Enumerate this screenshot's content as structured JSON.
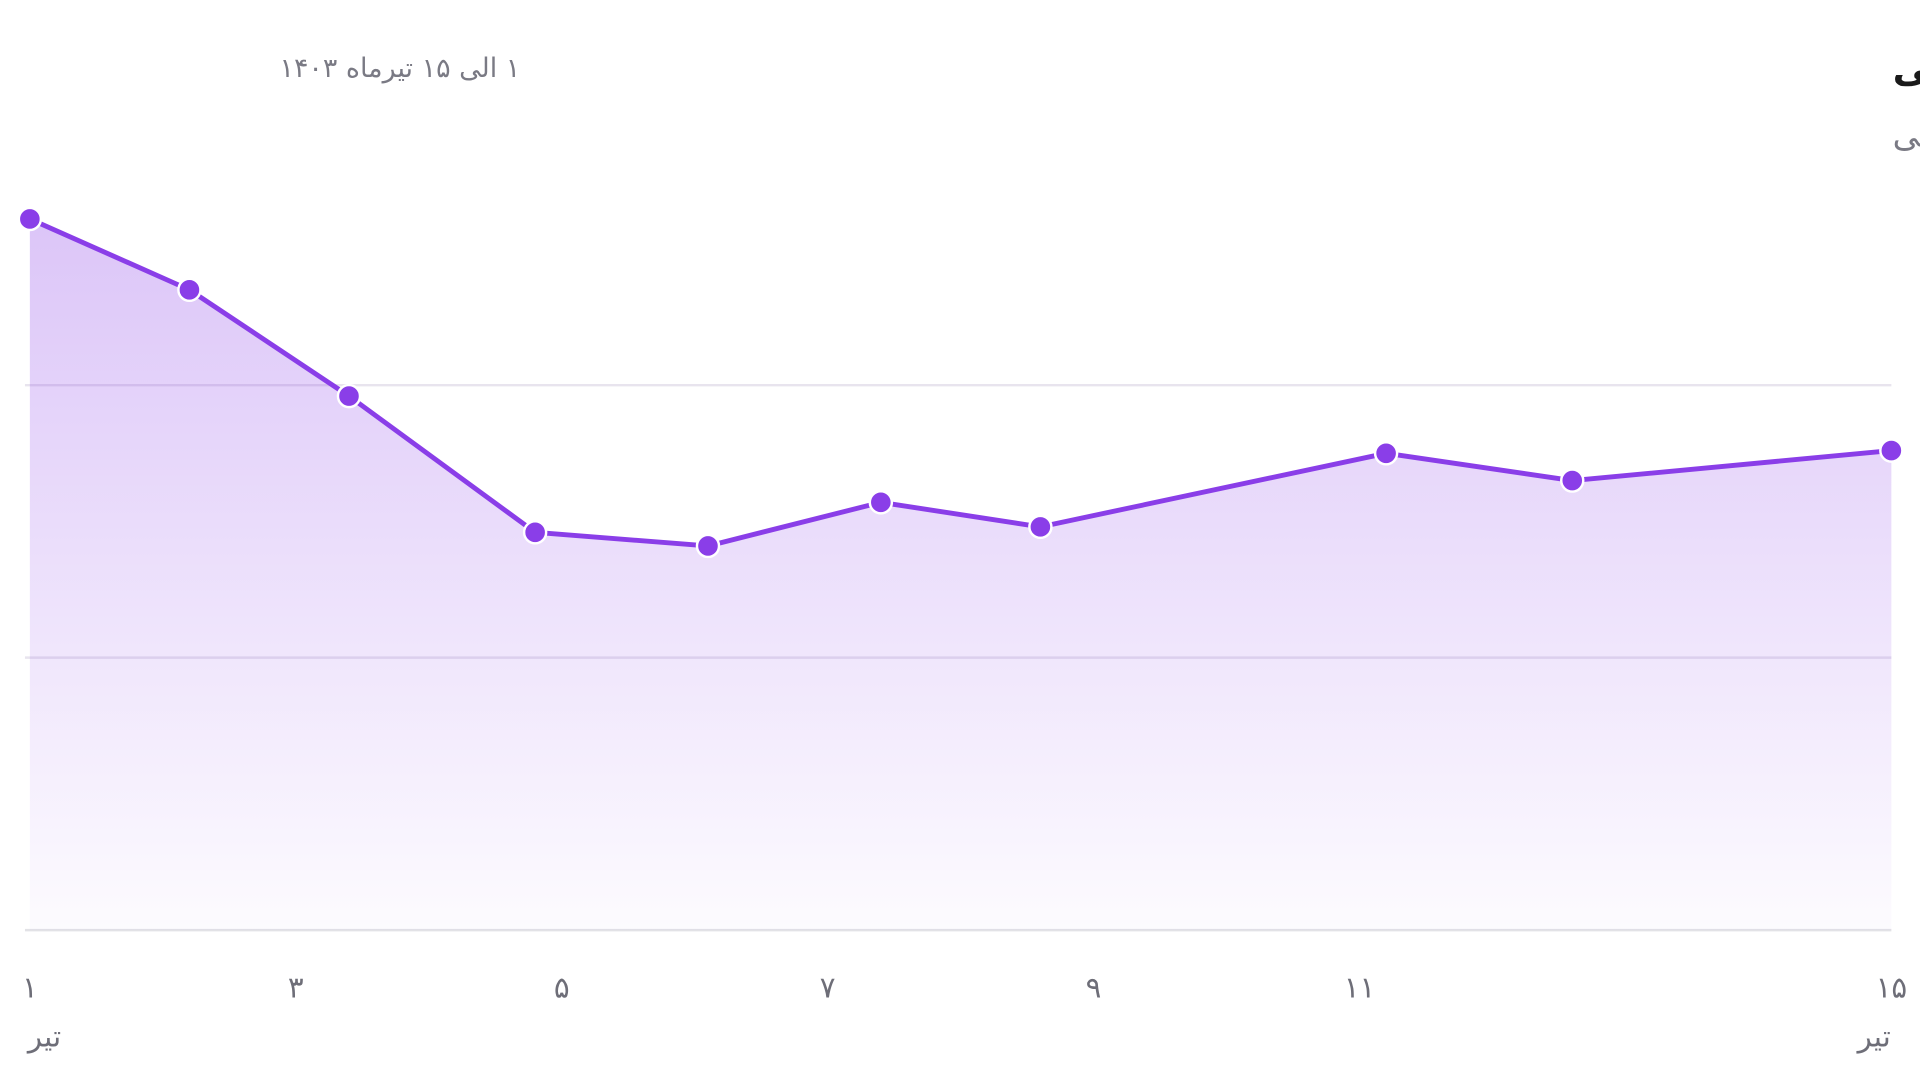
{
  "chart_data": {
    "type": "area",
    "title": "نوسانات ترافیک فروشگاه‌های اینستاگرامی",
    "subtitle": "در ایام تبلیغات انتخاباتی",
    "date_range": "۱ الی ۱۵ تیرماه ۱۴۰۳",
    "month_label": "تیر",
    "x": [
      1,
      2.2,
      3.4,
      4.8,
      6.1,
      7.4,
      8.6,
      11.2,
      12.6,
      15
    ],
    "series": [
      {
        "color": "#8a3ee8",
        "values": [
          2.61,
          2.35,
          1.96,
          1.46,
          1.41,
          1.57,
          1.48,
          1.75,
          1.65,
          1.76
        ]
      }
    ],
    "xlim": [
      1,
      15
    ],
    "xticks": [
      {
        "value": 1,
        "label": "۱"
      },
      {
        "value": 3,
        "label": "۳"
      },
      {
        "value": 5,
        "label": "۵"
      },
      {
        "value": 7,
        "label": "۷"
      },
      {
        "value": 9,
        "label": "۹"
      },
      {
        "value": 11,
        "label": "۱۱"
      },
      {
        "value": 15,
        "label": "۱۵"
      }
    ],
    "ylim": [
      0,
      2.75
    ],
    "yticks": [
      0,
      1,
      2
    ],
    "grid": true
  }
}
